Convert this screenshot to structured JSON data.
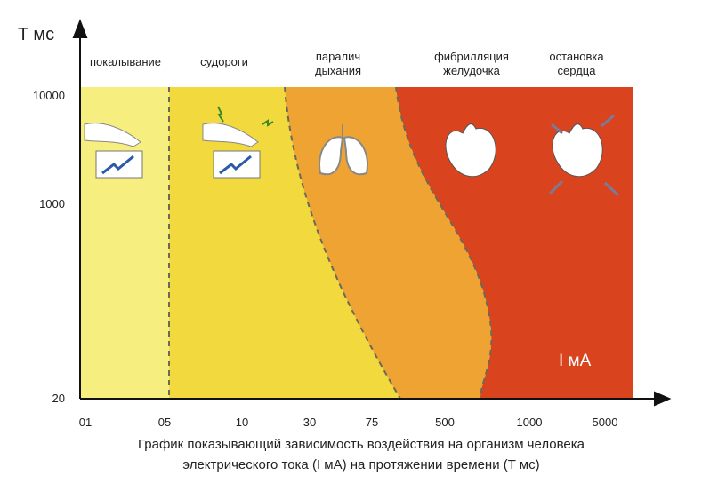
{
  "y_axis": {
    "label": "T мс",
    "ticks": [
      "10000",
      "1000",
      "20"
    ]
  },
  "x_axis": {
    "label": "I мА",
    "ticks": [
      "01",
      "05",
      "10",
      "30",
      "75",
      "500",
      "1000",
      "5000"
    ]
  },
  "zones": [
    {
      "lines": [
        "покалывание"
      ]
    },
    {
      "lines": [
        "судороги"
      ]
    },
    {
      "lines": [
        "паралич",
        "дыхания"
      ]
    },
    {
      "lines": [
        "фибрилляция",
        "желудочка"
      ]
    },
    {
      "lines": [
        "остановка",
        "сердца"
      ]
    }
  ],
  "caption": [
    "График показывающий зависимость воздействия на организм человека",
    "электрического тока (I мА) на протяжении времени (T мс)"
  ]
}
